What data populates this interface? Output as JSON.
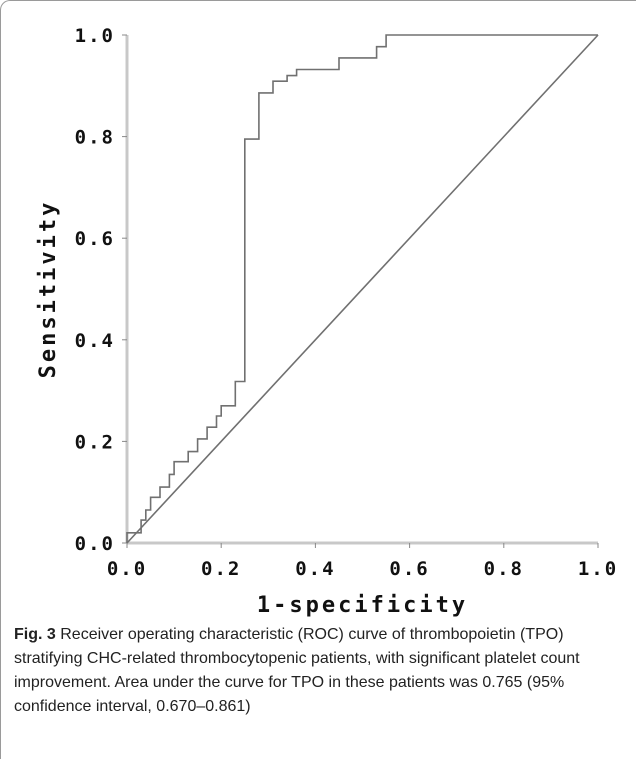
{
  "chart_data": {
    "type": "line",
    "xlabel": "1-specificity",
    "ylabel": "Sensitivity",
    "xlim": [
      0.0,
      1.0
    ],
    "ylim": [
      0.0,
      1.0
    ],
    "x_ticks": [
      "0.0",
      "0.2",
      "0.4",
      "0.6",
      "0.8",
      "1.0"
    ],
    "y_ticks": [
      "0.0",
      "0.2",
      "0.4",
      "0.6",
      "0.8",
      "1.0"
    ],
    "grid": false,
    "series": [
      {
        "color": "#707070",
        "points": [
          [
            0.0,
            0.0
          ],
          [
            0.0,
            0.02
          ],
          [
            0.03,
            0.02
          ],
          [
            0.03,
            0.045
          ],
          [
            0.04,
            0.045
          ],
          [
            0.04,
            0.065
          ],
          [
            0.05,
            0.065
          ],
          [
            0.05,
            0.09
          ],
          [
            0.07,
            0.09
          ],
          [
            0.07,
            0.11
          ],
          [
            0.09,
            0.11
          ],
          [
            0.09,
            0.135
          ],
          [
            0.1,
            0.135
          ],
          [
            0.1,
            0.16
          ],
          [
            0.13,
            0.16
          ],
          [
            0.13,
            0.18
          ],
          [
            0.15,
            0.18
          ],
          [
            0.15,
            0.205
          ],
          [
            0.17,
            0.205
          ],
          [
            0.17,
            0.228
          ],
          [
            0.19,
            0.228
          ],
          [
            0.19,
            0.25
          ],
          [
            0.2,
            0.25
          ],
          [
            0.2,
            0.27
          ],
          [
            0.23,
            0.27
          ],
          [
            0.23,
            0.318
          ],
          [
            0.25,
            0.318
          ],
          [
            0.25,
            0.795
          ],
          [
            0.28,
            0.795
          ],
          [
            0.28,
            0.886
          ],
          [
            0.31,
            0.886
          ],
          [
            0.31,
            0.909
          ],
          [
            0.34,
            0.909
          ],
          [
            0.34,
            0.92
          ],
          [
            0.36,
            0.92
          ],
          [
            0.36,
            0.932
          ],
          [
            0.45,
            0.932
          ],
          [
            0.45,
            0.955
          ],
          [
            0.53,
            0.955
          ],
          [
            0.53,
            0.977
          ],
          [
            0.55,
            0.977
          ],
          [
            0.55,
            1.0
          ],
          [
            1.0,
            1.0
          ]
        ]
      },
      {
        "color": "#707070",
        "points": [
          [
            0.0,
            0.0
          ],
          [
            1.0,
            1.0
          ]
        ]
      }
    ]
  },
  "caption": {
    "label": "Fig. 3",
    "text": "Receiver operating characteristic (ROC) curve of thrombopoietin (TPO) stratifying CHC-related thrombocytopenic patients, with significant platelet count improvement. Area under the curve for TPO in these patients was 0.765 (95% confidence interval, 0.670–0.861)"
  }
}
